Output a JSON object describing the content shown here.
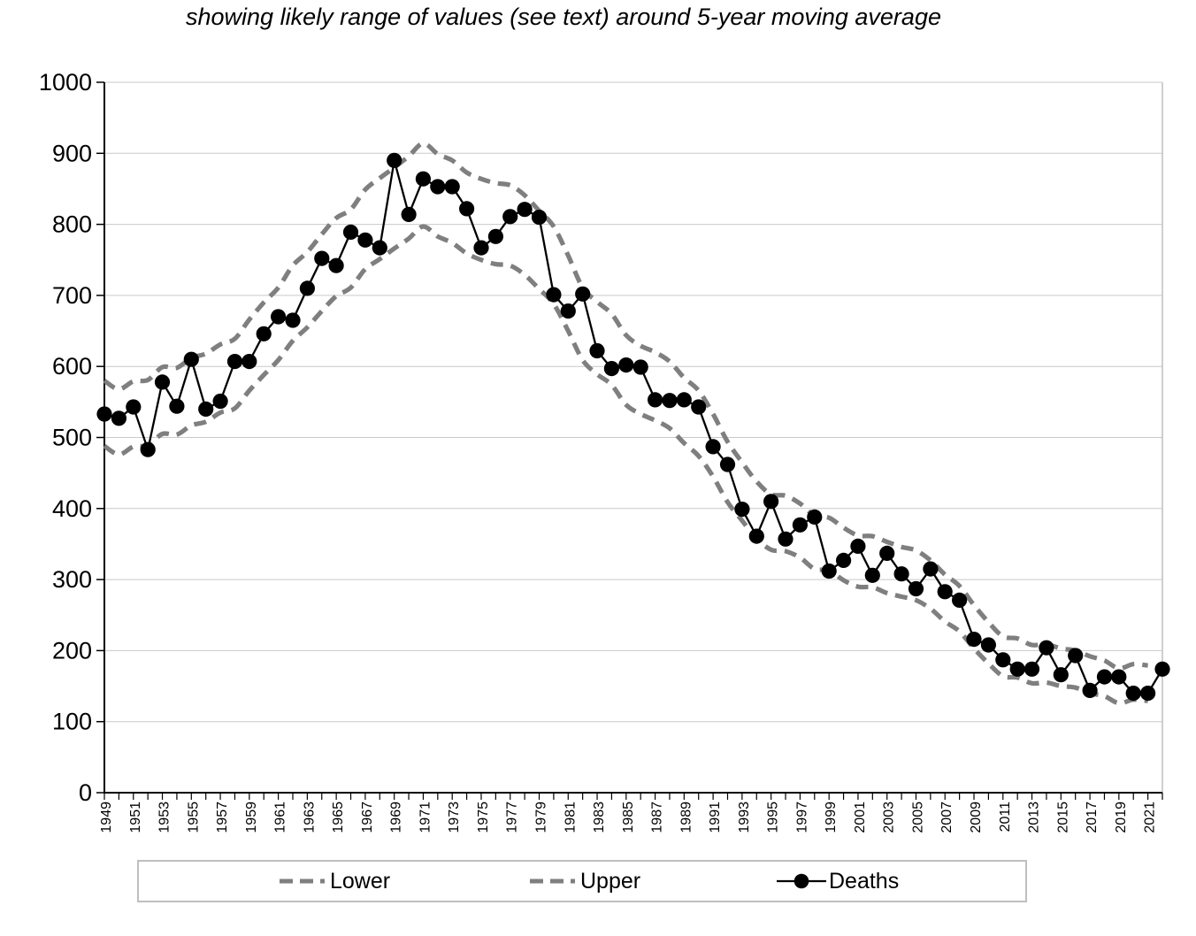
{
  "title": "showing likely range of values (see text) around 5-year moving average",
  "colors": {
    "band": "#7f7f7f",
    "deaths": "#000000",
    "gridline": "#c9c9c9",
    "axis": "#000000",
    "plot_border": "#bfbfbf"
  },
  "chart_data": {
    "type": "line",
    "title": "showing likely range of values (see text) around 5-year moving average",
    "xlabel": "",
    "ylabel": "",
    "ylim": [
      0,
      1000
    ],
    "y_step": 100,
    "grid": "horizontal",
    "x_label_rotation": 90,
    "x_labels_every": 2,
    "legend_position": "bottom",
    "x": [
      1949,
      1950,
      1951,
      1952,
      1953,
      1954,
      1955,
      1956,
      1957,
      1958,
      1959,
      1960,
      1961,
      1962,
      1963,
      1964,
      1965,
      1966,
      1967,
      1968,
      1969,
      1970,
      1971,
      1972,
      1973,
      1974,
      1975,
      1976,
      1977,
      1978,
      1979,
      1980,
      1981,
      1982,
      1983,
      1984,
      1985,
      1986,
      1987,
      1988,
      1989,
      1990,
      1991,
      1992,
      1993,
      1994,
      1995,
      1996,
      1997,
      1998,
      1999,
      2000,
      2001,
      2002,
      2003,
      2004,
      2005,
      2006,
      2007,
      2008,
      2009,
      2010,
      2011,
      2012,
      2013,
      2014,
      2015,
      2016,
      2017,
      2018,
      2019,
      2020,
      2021,
      2022
    ],
    "series": [
      {
        "name": "Lower",
        "style": "dashed",
        "color": "#7f7f7f",
        "values": [
          488,
          476,
          487,
          489,
          505,
          504,
          517,
          522,
          535,
          541,
          566,
          588,
          609,
          636,
          655,
          678,
          699,
          711,
          737,
          751,
          766,
          780,
          797,
          783,
          774,
          759,
          750,
          744,
          742,
          729,
          709,
          688,
          650,
          609,
          589,
          574,
          546,
          533,
          524,
          513,
          492,
          474,
          445,
          409,
          383,
          358,
          342,
          340,
          331,
          315,
          313,
          299,
          290,
          289,
          281,
          276,
          271,
          259,
          241,
          227,
          203,
          182,
          164,
          162,
          154,
          155,
          150,
          148,
          140,
          136,
          126,
          131,
          129,
          null
        ]
      },
      {
        "name": "Upper",
        "style": "dashed",
        "color": "#7f7f7f",
        "values": [
          580,
          568,
          579,
          581,
          599,
          598,
          612,
          618,
          631,
          639,
          666,
          690,
          711,
          742,
          761,
          786,
          809,
          821,
          849,
          865,
          880,
          896,
          914,
          899,
          890,
          873,
          864,
          858,
          855,
          841,
          819,
          797,
          756,
          711,
          691,
          674,
          644,
          629,
          620,
          607,
          584,
          566,
          533,
          494,
          465,
          438,
          420,
          418,
          407,
          390,
          387,
          373,
          362,
          361,
          353,
          346,
          341,
          327,
          307,
          291,
          264,
          240,
          220,
          217,
          208,
          209,
          203,
          200,
          192,
          186,
          175,
          181,
          179,
          null
        ]
      },
      {
        "name": "Deaths",
        "style": "line-markers",
        "color": "#000000",
        "values": [
          533,
          527,
          543,
          483,
          578,
          544,
          610,
          540,
          551,
          607,
          607,
          646,
          670,
          665,
          710,
          752,
          742,
          789,
          778,
          767,
          890,
          814,
          864,
          853,
          853,
          822,
          767,
          783,
          811,
          821,
          810,
          701,
          678,
          702,
          622,
          597,
          602,
          599,
          553,
          552,
          553,
          543,
          487,
          462,
          399,
          361,
          410,
          357,
          377,
          388,
          312,
          327,
          347,
          306,
          337,
          308,
          287,
          315,
          283,
          271,
          216,
          208,
          187,
          174,
          174,
          204,
          166,
          193,
          144,
          163,
          163,
          140,
          140,
          174
        ]
      }
    ],
    "legend": {
      "lower": "Lower",
      "upper": "Upper",
      "deaths": "Deaths"
    }
  }
}
